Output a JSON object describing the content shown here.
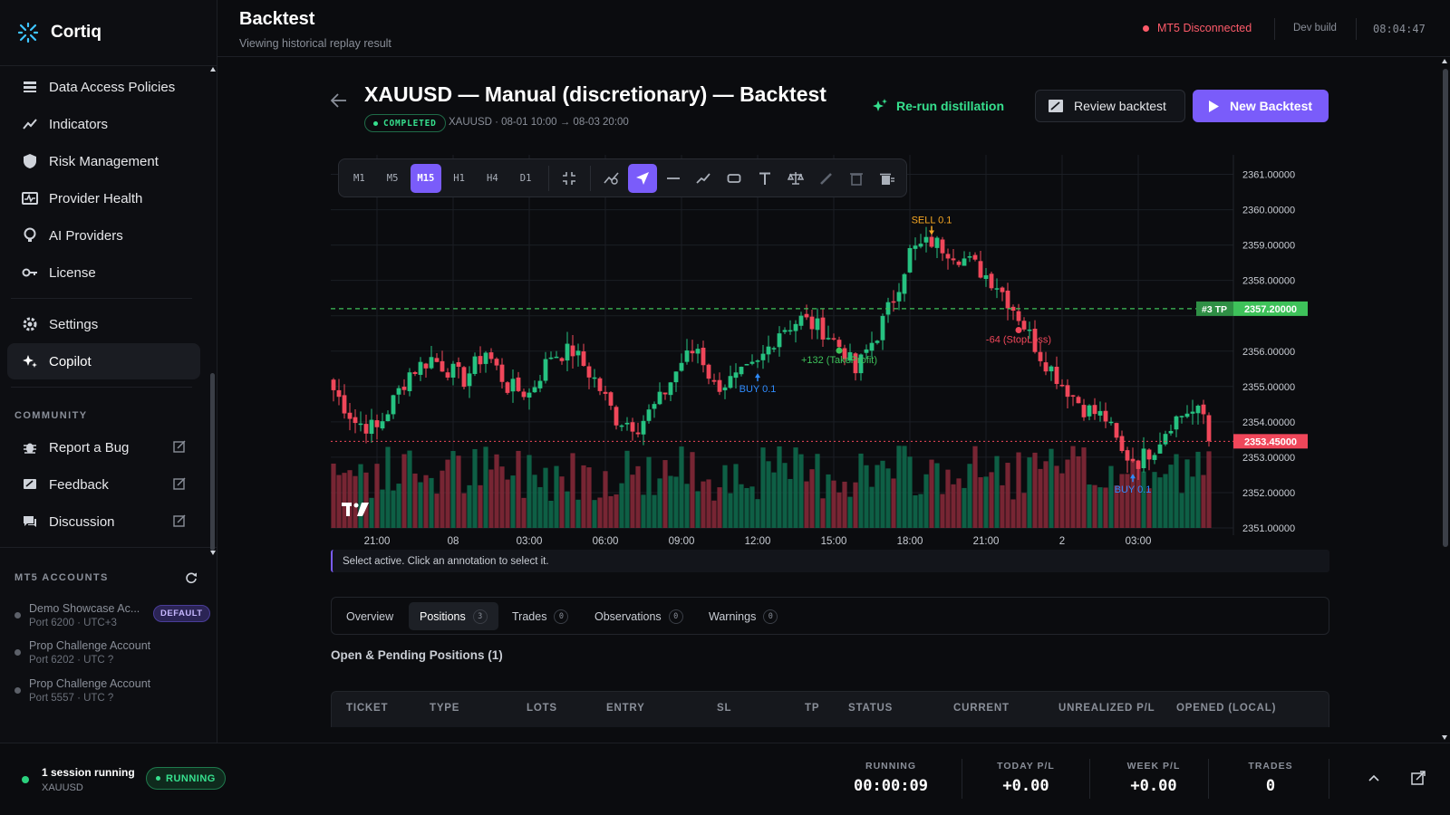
{
  "app": {
    "name": "Cortiq"
  },
  "sidebar": {
    "items": [
      {
        "label": "Data Access Policies",
        "icon": "list-icon"
      },
      {
        "label": "Indicators",
        "icon": "trend-icon"
      },
      {
        "label": "Risk Management",
        "icon": "shield-icon"
      },
      {
        "label": "Provider Health",
        "icon": "health-icon"
      },
      {
        "label": "AI Providers",
        "icon": "brain-icon"
      },
      {
        "label": "License",
        "icon": "key-icon"
      }
    ],
    "settings_label": "Settings",
    "copilot_label": "Copilot",
    "community_label": "COMMUNITY",
    "community": [
      {
        "label": "Report a Bug",
        "icon": "bug-icon"
      },
      {
        "label": "Feedback",
        "icon": "feedback-icon"
      },
      {
        "label": "Discussion",
        "icon": "chat-icon"
      }
    ],
    "accounts_label": "MT5 ACCOUNTS",
    "accounts": [
      {
        "name": "Demo Showcase Ac...",
        "sub": "Port 6200 · UTC+3",
        "badge": "DEFAULT"
      },
      {
        "name": "Prop Challenge Account",
        "sub": "Port 6202 · UTC ?"
      },
      {
        "name": "Prop Challenge Account",
        "sub": "Port 5557 · UTC ?"
      }
    ]
  },
  "header": {
    "title": "Backtest",
    "subtitle": "Viewing historical replay result",
    "mt5_status": "MT5 Disconnected",
    "build": "Dev build",
    "clock": "08:04:47"
  },
  "backtest": {
    "title": "XAUUSD — Manual (discretionary) — Backtest",
    "status": "COMPLETED",
    "meta": "XAUUSD · 08-01 10:00 → 08-03 20:00",
    "rerun_label": "Re-run distillation",
    "review_label": "Review backtest",
    "new_label": "New Backtest"
  },
  "toolbar": {
    "timeframes": [
      "M1",
      "M5",
      "M15",
      "H1",
      "H4",
      "D1"
    ],
    "active_timeframe": "M15"
  },
  "chart_data": {
    "type": "candlestick",
    "symbol": "XAUUSD",
    "timeframe": "M15",
    "ylim": [
      2351.0,
      2361.5
    ],
    "y_ticks": [
      "2361.00000",
      "2360.00000",
      "2359.00000",
      "2358.00000",
      "2357.00000",
      "2356.00000",
      "2355.00000",
      "2354.00000",
      "2353.00000",
      "2352.00000",
      "2351.00000"
    ],
    "x_ticks": [
      "21:00",
      "08",
      "03:00",
      "06:00",
      "09:00",
      "12:00",
      "15:00",
      "18:00",
      "21:00",
      "2",
      "03:00"
    ],
    "x_tick_bars": [
      8,
      22,
      36,
      50,
      64,
      78,
      92,
      106,
      120,
      134,
      148
    ],
    "close_path": [
      [
        0,
        2354.9
      ],
      [
        4,
        2354.0
      ],
      [
        8,
        2353.8
      ],
      [
        14,
        2355.4
      ],
      [
        18,
        2355.8
      ],
      [
        24,
        2355.2
      ],
      [
        28,
        2356.0
      ],
      [
        32,
        2355.0
      ],
      [
        36,
        2354.8
      ],
      [
        40,
        2355.9
      ],
      [
        44,
        2356.0
      ],
      [
        48,
        2355.2
      ],
      [
        52,
        2354.1
      ],
      [
        56,
        2353.9
      ],
      [
        60,
        2354.6
      ],
      [
        64,
        2355.7
      ],
      [
        67,
        2356.1
      ],
      [
        70,
        2355.0
      ],
      [
        74,
        2355.2
      ],
      [
        78,
        2355.6
      ],
      [
        82,
        2356.6
      ],
      [
        86,
        2356.9
      ],
      [
        90,
        2356.6
      ],
      [
        94,
        2356.0
      ],
      [
        96,
        2355.4
      ],
      [
        98,
        2356.0
      ],
      [
        100,
        2356.5
      ],
      [
        103,
        2357.5
      ],
      [
        106,
        2358.8
      ],
      [
        110,
        2359.1
      ],
      [
        114,
        2358.8
      ],
      [
        118,
        2358.4
      ],
      [
        122,
        2357.9
      ],
      [
        126,
        2357.0
      ],
      [
        130,
        2355.9
      ],
      [
        134,
        2355.1
      ],
      [
        138,
        2354.4
      ],
      [
        142,
        2354.1
      ],
      [
        145,
        2353.1
      ],
      [
        148,
        2352.9
      ],
      [
        151,
        2353.3
      ],
      [
        154,
        2354.0
      ],
      [
        157,
        2354.3
      ],
      [
        160,
        2354.2
      ],
      [
        161,
        2353.45
      ]
    ],
    "tp_line": {
      "price": 2357.2,
      "label": "#3 TP",
      "value": "2357.20000"
    },
    "last_price": {
      "price": 2353.45,
      "value": "2353.45000"
    },
    "annotations": [
      {
        "bar": 78,
        "text": "BUY 0.1",
        "kind": "buy"
      },
      {
        "bar": 110,
        "text": "SELL 0.1",
        "kind": "sell"
      },
      {
        "bar": 147,
        "text": "BUY 0.1",
        "kind": "buy"
      },
      {
        "bar": 93,
        "text": "+132 (TakeProfit)",
        "kind": "tp"
      },
      {
        "bar": 126,
        "text": "-64 (StopLoss)",
        "kind": "sl"
      }
    ],
    "colors": {
      "up": "#26c281",
      "down": "#f0475a",
      "grid": "#1b1e24",
      "tp": "#3ec25a",
      "last": "#f0475a",
      "buy": "#2f8cff",
      "sell": "#f5a623"
    }
  },
  "hint": "Select active. Click an annotation to select it.",
  "tabs": [
    {
      "label": "Overview"
    },
    {
      "label": "Positions",
      "count": "3"
    },
    {
      "label": "Trades",
      "count": "0"
    },
    {
      "label": "Observations",
      "count": "0"
    },
    {
      "label": "Warnings",
      "count": "0"
    }
  ],
  "positions": {
    "title": "Open & Pending Positions (1)",
    "columns": [
      "TICKET",
      "TYPE",
      "LOTS",
      "ENTRY",
      "SL",
      "TP",
      "STATUS",
      "CURRENT",
      "UNREALIZED P/L",
      "OPENED (LOCAL)"
    ]
  },
  "bottom": {
    "session_title": "1 session running",
    "session_symbol": "XAUUSD",
    "running_label": "RUNNING",
    "stats": [
      {
        "label": "RUNNING",
        "value": "00:00:09"
      },
      {
        "label": "TODAY P/L",
        "value": "+0.00"
      },
      {
        "label": "WEEK P/L",
        "value": "+0.00"
      },
      {
        "label": "TRADES",
        "value": "0"
      }
    ]
  }
}
